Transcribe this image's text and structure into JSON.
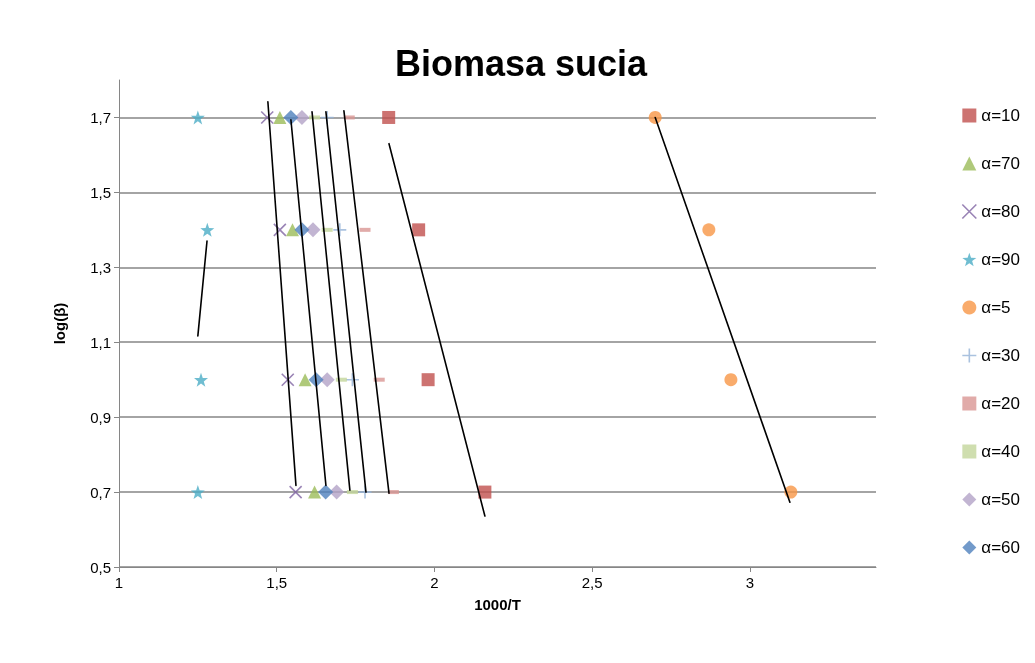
{
  "chart_data": {
    "type": "scatter",
    "title": "Biomasa sucia",
    "xlabel": "1000/T",
    "ylabel": "log(β)",
    "xlim": [
      1,
      3.4
    ],
    "xticks": [
      1,
      {
        "value": 1.5,
        "label": "1,5"
      },
      2,
      {
        "value": 2.5,
        "label": "2,5"
      },
      3
    ],
    "ylim": [
      0.5,
      1.8
    ],
    "yticks": [
      {
        "value": 0.5,
        "label": "0,5"
      },
      {
        "value": 0.7,
        "label": "0,7"
      },
      {
        "value": 0.9,
        "label": "0,9"
      },
      {
        "value": 1.1,
        "label": "1,1"
      },
      {
        "value": 1.3,
        "label": "1,3"
      },
      {
        "value": 1.5,
        "label": "1,5"
      },
      {
        "value": 1.7,
        "label": "1,7"
      }
    ],
    "grid": "y",
    "legend": "right",
    "series": [
      {
        "name": "α=10",
        "color": "#c0504d",
        "marker": "square",
        "x": [
          1.855,
          1.95,
          1.98,
          2.16
        ],
        "values": [
          1.7,
          1.4,
          1.0,
          0.7
        ]
      },
      {
        "name": "α=70",
        "color": "#9bbb59",
        "marker": "triangle",
        "x": [
          1.51,
          1.55,
          1.59,
          1.62
        ],
        "values": [
          1.7,
          1.4,
          1.0,
          0.7
        ]
      },
      {
        "name": "α=80",
        "color": "#8064a2",
        "marker": "cross",
        "x": [
          1.47,
          1.51,
          1.535,
          1.56
        ],
        "values": [
          1.7,
          1.4,
          1.0,
          0.7
        ]
      },
      {
        "name": "α=90",
        "color": "#4bacc6",
        "marker": "star",
        "x": [
          1.25,
          1.28,
          1.26,
          1.25
        ],
        "values": [
          1.7,
          1.4,
          1.0,
          0.7
        ]
      },
      {
        "name": "α=5",
        "color": "#f79646",
        "marker": "circle",
        "x": [
          2.7,
          2.87,
          2.94,
          3.13
        ],
        "values": [
          1.7,
          1.4,
          1.0,
          0.7
        ]
      },
      {
        "name": "α=30",
        "color": "#95b3d7",
        "marker": "plus",
        "x": [
          1.66,
          1.7,
          1.74,
          1.78
        ],
        "values": [
          1.7,
          1.4,
          1.0,
          0.7
        ]
      },
      {
        "name": "α=20",
        "color": "#d99694",
        "x": [
          1.73,
          1.78,
          1.825,
          1.87
        ],
        "values": [
          1.7,
          1.4,
          1.0,
          0.7
        ]
      },
      {
        "name": "α=40",
        "color": "#c3d69b",
        "x": [
          1.62,
          1.66,
          1.705,
          1.74
        ],
        "values": [
          1.7,
          1.4,
          1.0,
          0.7
        ]
      },
      {
        "name": "α=50",
        "color": "#b3a2c7",
        "marker": "diamond",
        "x": [
          1.58,
          1.615,
          1.66,
          1.69
        ],
        "values": [
          1.7,
          1.4,
          1.0,
          0.7
        ]
      },
      {
        "name": "α=60",
        "color": "#4f81bd",
        "marker": "diamond",
        "x": [
          1.545,
          1.58,
          1.625,
          1.655
        ],
        "values": [
          1.7,
          1.4,
          1.0,
          0.7
        ]
      },
      {
        "type": "line",
        "color": "#000000",
        "marker": "none",
        "x": [
          1.25,
          1.279
        ],
        "values": [
          1.117,
          1.37
        ]
      },
      {
        "type": "line",
        "color": "#000000",
        "marker": "none",
        "x": [
          1.472,
          1.561
        ],
        "values": [
          1.742,
          0.718
        ]
      },
      {
        "type": "line",
        "color": "#000000",
        "marker": "none",
        "x": [
          1.545,
          1.656
        ],
        "values": [
          1.694,
          0.718
        ]
      },
      {
        "type": "line",
        "color": "#000000",
        "marker": "none",
        "x": [
          1.612,
          1.732
        ],
        "values": [
          1.715,
          0.705
        ]
      },
      {
        "type": "line",
        "color": "#000000",
        "marker": "none",
        "x": [
          1.656,
          1.783
        ],
        "values": [
          1.715,
          0.7
        ]
      },
      {
        "type": "line",
        "color": "#000000",
        "marker": "none",
        "x": [
          1.713,
          1.856
        ],
        "values": [
          1.718,
          0.697
        ]
      },
      {
        "type": "line",
        "color": "#000000",
        "marker": "none",
        "x": [
          1.856,
          2.16
        ],
        "values": [
          1.63,
          0.636
        ]
      },
      {
        "type": "line",
        "color": "#000000",
        "marker": "none",
        "x": [
          2.7,
          3.127
        ],
        "values": [
          1.7,
          0.673
        ]
      }
    ]
  }
}
